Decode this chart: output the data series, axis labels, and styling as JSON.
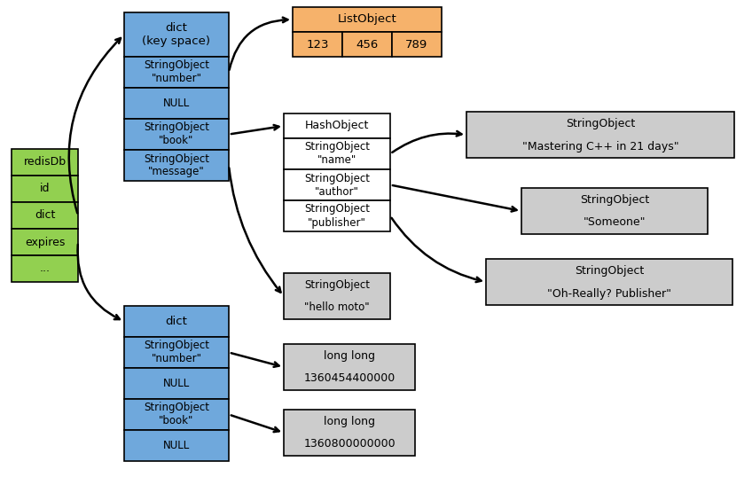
{
  "bg_color": "#ffffff",
  "green_color": "#92d050",
  "blue_color": "#6fa8dc",
  "orange_color": "#f6b26b",
  "gray_color": "#cccccc",
  "white_color": "#ffffff",
  "border_color": "#000000",
  "redisdb_rows": [
    "redisDb",
    "id",
    "dict",
    "expires",
    "..."
  ],
  "dict_top_rows": [
    "dict\n(key space)",
    "StringObject\n\"number\"",
    "NULL",
    "StringObject\n\"book\"",
    "StringObject\n\"message\""
  ],
  "dict_bottom_rows": [
    "dict",
    "StringObject\n\"number\"",
    "NULL",
    "StringObject\n\"book\"",
    "NULL"
  ],
  "listobject_title": "ListObject",
  "listobject_items": [
    "123",
    "456",
    "789"
  ],
  "hashobject_rows": [
    "HashObject",
    "StringObject\n\"name\"",
    "StringObject\n\"author\"",
    "StringObject\n\"publisher\""
  ],
  "string_hello_rows": [
    "StringObject",
    "\"hello moto\""
  ],
  "string_mastering_rows": [
    "StringObject",
    "\"Mastering C++ in 21 days\""
  ],
  "string_someone_rows": [
    "StringObject",
    "\"Someone\""
  ],
  "string_publisher_rows": [
    "StringObject",
    "\"Oh-Really? Publisher\""
  ],
  "longlong1_rows": [
    "long long",
    "1360454400000"
  ],
  "longlong2_rows": [
    "long long",
    "1360800000000"
  ],
  "figsize": [
    8.48,
    5.47
  ],
  "dpi": 100
}
